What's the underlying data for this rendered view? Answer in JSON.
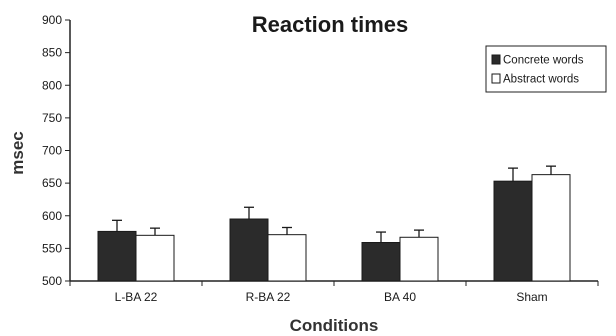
{
  "chart_data": {
    "type": "bar",
    "title": "Reaction times",
    "xlabel": "Conditions",
    "ylabel": "msec",
    "categories": [
      "L-BA 22",
      "R-BA 22",
      "BA 40",
      "Sham"
    ],
    "series": [
      {
        "name": "Concrete words",
        "values": [
          576,
          595,
          559,
          653
        ],
        "errors": [
          17,
          18,
          16,
          20
        ],
        "color": "#2b2b2b"
      },
      {
        "name": "Abstract words",
        "values": [
          570,
          571,
          567,
          663
        ],
        "errors": [
          11,
          11,
          11,
          13
        ],
        "color": "#ffffff"
      }
    ],
    "ylim": [
      500,
      900
    ],
    "yticks": [
      500,
      550,
      600,
      650,
      700,
      750,
      800,
      850,
      900
    ],
    "grid": false,
    "legend_position": "top-right"
  }
}
